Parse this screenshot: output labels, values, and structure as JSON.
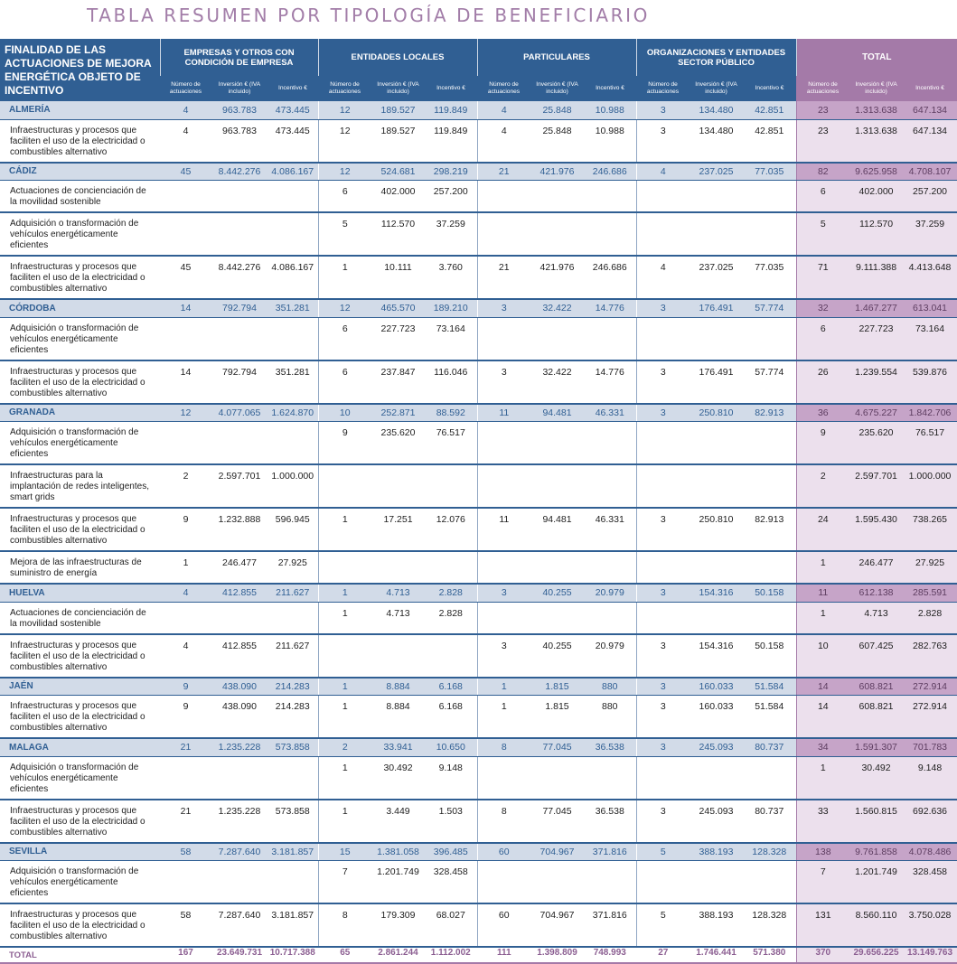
{
  "title": "TABLA RESUMEN POR TIPOLOGÍA DE BENEFICIARIO",
  "header": {
    "first": "FINALIDAD DE LAS ACTUACIONES DE MEJORA ENERGÉTICA OBJETO DE INCENTIVO",
    "groups": [
      "EMPRESAS Y OTROS CON CONDICIÓN DE EMPRESA",
      "ENTIDADES LOCALES",
      "PARTICULARES",
      "ORGANIZACIONES Y ENTIDADES SECTOR PÚBLICO",
      "TOTAL"
    ],
    "sub": [
      "Número de actuaciones",
      "Inversión € (IVA incluido)",
      "Incentivo €"
    ]
  },
  "rows": [
    {
      "type": "prov",
      "label": "ALMERÍA",
      "v": [
        "4",
        "963.783",
        "473.445",
        "12",
        "189.527",
        "119.849",
        "4",
        "25.848",
        "10.988",
        "3",
        "134.480",
        "42.851",
        "23",
        "1.313.638",
        "647.134"
      ]
    },
    {
      "type": "det",
      "h": 3,
      "label": "Infraestructuras y procesos que faciliten el uso de la electricidad o combustibles alternativo",
      "v": [
        "4",
        "963.783",
        "473.445",
        "12",
        "189.527",
        "119.849",
        "4",
        "25.848",
        "10.988",
        "3",
        "134.480",
        "42.851",
        "23",
        "1.313.638",
        "647.134"
      ]
    },
    {
      "type": "prov",
      "label": "CÁDIZ",
      "v": [
        "45",
        "8.442.276",
        "4.086.167",
        "12",
        "524.681",
        "298.219",
        "21",
        "421.976",
        "246.686",
        "4",
        "237.025",
        "77.035",
        "82",
        "9.625.958",
        "4.708.107"
      ]
    },
    {
      "type": "det",
      "h": 2,
      "label": "Actuaciones de concienciación de la movilidad sostenible",
      "v": [
        "",
        "",
        "",
        "6",
        "402.000",
        "257.200",
        "",
        "",
        "",
        "",
        "",
        "",
        "6",
        "402.000",
        "257.200"
      ]
    },
    {
      "type": "det",
      "h": 3,
      "label": "Adquisición o transformación de vehículos energéticamente eficientes",
      "v": [
        "",
        "",
        "",
        "5",
        "112.570",
        "37.259",
        "",
        "",
        "",
        "",
        "",
        "",
        "5",
        "112.570",
        "37.259"
      ]
    },
    {
      "type": "det",
      "h": 3,
      "label": "Infraestructuras y procesos que faciliten el uso de la electricidad o combustibles alternativo",
      "v": [
        "45",
        "8.442.276",
        "4.086.167",
        "1",
        "10.111",
        "3.760",
        "21",
        "421.976",
        "246.686",
        "4",
        "237.025",
        "77.035",
        "71",
        "9.111.388",
        "4.413.648"
      ]
    },
    {
      "type": "prov",
      "label": "CÓRDOBA",
      "v": [
        "14",
        "792.794",
        "351.281",
        "12",
        "465.570",
        "189.210",
        "3",
        "32.422",
        "14.776",
        "3",
        "176.491",
        "57.774",
        "32",
        "1.467.277",
        "613.041"
      ]
    },
    {
      "type": "det",
      "h": 3,
      "label": "Adquisición o transformación de vehículos energéticamente eficientes",
      "v": [
        "",
        "",
        "",
        "6",
        "227.723",
        "73.164",
        "",
        "",
        "",
        "",
        "",
        "",
        "6",
        "227.723",
        "73.164"
      ]
    },
    {
      "type": "det",
      "h": 3,
      "label": "Infraestructuras y procesos que faciliten el uso de la electricidad o combustibles alternativo",
      "v": [
        "14",
        "792.794",
        "351.281",
        "6",
        "237.847",
        "116.046",
        "3",
        "32.422",
        "14.776",
        "3",
        "176.491",
        "57.774",
        "26",
        "1.239.554",
        "539.876"
      ]
    },
    {
      "type": "prov",
      "label": "GRANADA",
      "v": [
        "12",
        "4.077.065",
        "1.624.870",
        "10",
        "252.871",
        "88.592",
        "11",
        "94.481",
        "46.331",
        "3",
        "250.810",
        "82.913",
        "36",
        "4.675.227",
        "1.842.706"
      ]
    },
    {
      "type": "det",
      "h": 3,
      "label": "Adquisición o transformación de vehículos energéticamente eficientes",
      "v": [
        "",
        "",
        "",
        "9",
        "235.620",
        "76.517",
        "",
        "",
        "",
        "",
        "",
        "",
        "9",
        "235.620",
        "76.517"
      ]
    },
    {
      "type": "det",
      "h": 3,
      "label": "Infraestructuras para la implantación de redes inteligentes, smart grids",
      "v": [
        "2",
        "2.597.701",
        "1.000.000",
        "",
        "",
        "",
        "",
        "",
        "",
        "",
        "",
        "",
        "2",
        "2.597.701",
        "1.000.000"
      ]
    },
    {
      "type": "det",
      "h": 3,
      "label": "Infraestructuras y procesos que faciliten el uso de la electricidad o combustibles alternativo",
      "v": [
        "9",
        "1.232.888",
        "596.945",
        "1",
        "17.251",
        "12.076",
        "11",
        "94.481",
        "46.331",
        "3",
        "250.810",
        "82.913",
        "24",
        "1.595.430",
        "738.265"
      ]
    },
    {
      "type": "det",
      "h": 2,
      "label": "Mejora de las infraestructuras de suministro de energía",
      "v": [
        "1",
        "246.477",
        "27.925",
        "",
        "",
        "",
        "",
        "",
        "",
        "",
        "",
        "",
        "1",
        "246.477",
        "27.925"
      ]
    },
    {
      "type": "prov",
      "label": "HUELVA",
      "v": [
        "4",
        "412.855",
        "211.627",
        "1",
        "4.713",
        "2.828",
        "3",
        "40.255",
        "20.979",
        "3",
        "154.316",
        "50.158",
        "11",
        "612.138",
        "285.591"
      ]
    },
    {
      "type": "det",
      "h": 2,
      "label": "Actuaciones de concienciación de la movilidad sostenible",
      "v": [
        "",
        "",
        "",
        "1",
        "4.713",
        "2.828",
        "",
        "",
        "",
        "",
        "",
        "",
        "1",
        "4.713",
        "2.828"
      ]
    },
    {
      "type": "det",
      "h": 3,
      "label": "Infraestructuras y procesos que faciliten el uso de la electricidad o combustibles alternativo",
      "v": [
        "4",
        "412.855",
        "211.627",
        "",
        "",
        "",
        "3",
        "40.255",
        "20.979",
        "3",
        "154.316",
        "50.158",
        "10",
        "607.425",
        "282.763"
      ]
    },
    {
      "type": "prov",
      "label": "JAÉN",
      "v": [
        "9",
        "438.090",
        "214.283",
        "1",
        "8.884",
        "6.168",
        "1",
        "1.815",
        "880",
        "3",
        "160.033",
        "51.584",
        "14",
        "608.821",
        "272.914"
      ]
    },
    {
      "type": "det",
      "h": 3,
      "label": "Infraestructuras y procesos que faciliten el uso de la electricidad o combustibles alternativo",
      "v": [
        "9",
        "438.090",
        "214.283",
        "1",
        "8.884",
        "6.168",
        "1",
        "1.815",
        "880",
        "3",
        "160.033",
        "51.584",
        "14",
        "608.821",
        "272.914"
      ]
    },
    {
      "type": "prov",
      "label": "MALAGA",
      "v": [
        "21",
        "1.235.228",
        "573.858",
        "2",
        "33.941",
        "10.650",
        "8",
        "77.045",
        "36.538",
        "3",
        "245.093",
        "80.737",
        "34",
        "1.591.307",
        "701.783"
      ]
    },
    {
      "type": "det",
      "h": 3,
      "label": "Adquisición o transformación de vehículos energéticamente eficientes",
      "v": [
        "",
        "",
        "",
        "1",
        "30.492",
        "9.148",
        "",
        "",
        "",
        "",
        "",
        "",
        "1",
        "30.492",
        "9.148"
      ]
    },
    {
      "type": "det",
      "h": 3,
      "label": "Infraestructuras y procesos que faciliten el uso de la electricidad o combustibles alternativo",
      "v": [
        "21",
        "1.235.228",
        "573.858",
        "1",
        "3.449",
        "1.503",
        "8",
        "77.045",
        "36.538",
        "3",
        "245.093",
        "80.737",
        "33",
        "1.560.815",
        "692.636"
      ]
    },
    {
      "type": "prov",
      "label": "SEVILLA",
      "v": [
        "58",
        "7.287.640",
        "3.181.857",
        "15",
        "1.381.058",
        "396.485",
        "60",
        "704.967",
        "371.816",
        "5",
        "388.193",
        "128.328",
        "138",
        "9.761.858",
        "4.078.486"
      ]
    },
    {
      "type": "det",
      "h": 3,
      "label": "Adquisición o transformación de vehículos energéticamente eficientes",
      "v": [
        "",
        "",
        "",
        "7",
        "1.201.749",
        "328.458",
        "",
        "",
        "",
        "",
        "",
        "",
        "7",
        "1.201.749",
        "328.458"
      ]
    },
    {
      "type": "det",
      "h": 3,
      "label": "Infraestructuras y procesos que faciliten el uso de la electricidad o combustibles alternativo",
      "v": [
        "58",
        "7.287.640",
        "3.181.857",
        "8",
        "179.309",
        "68.027",
        "60",
        "704.967",
        "371.816",
        "5",
        "388.193",
        "128.328",
        "131",
        "8.560.110",
        "3.750.028"
      ]
    },
    {
      "type": "total",
      "label": "TOTAL",
      "v": [
        "167",
        "23.649.731",
        "10.717.388",
        "65",
        "2.861.244",
        "1.112.002",
        "111",
        "1.398.809",
        "748.993",
        "27",
        "1.746.441",
        "571.380",
        "370",
        "29.656.225",
        "13.149.763"
      ]
    }
  ]
}
